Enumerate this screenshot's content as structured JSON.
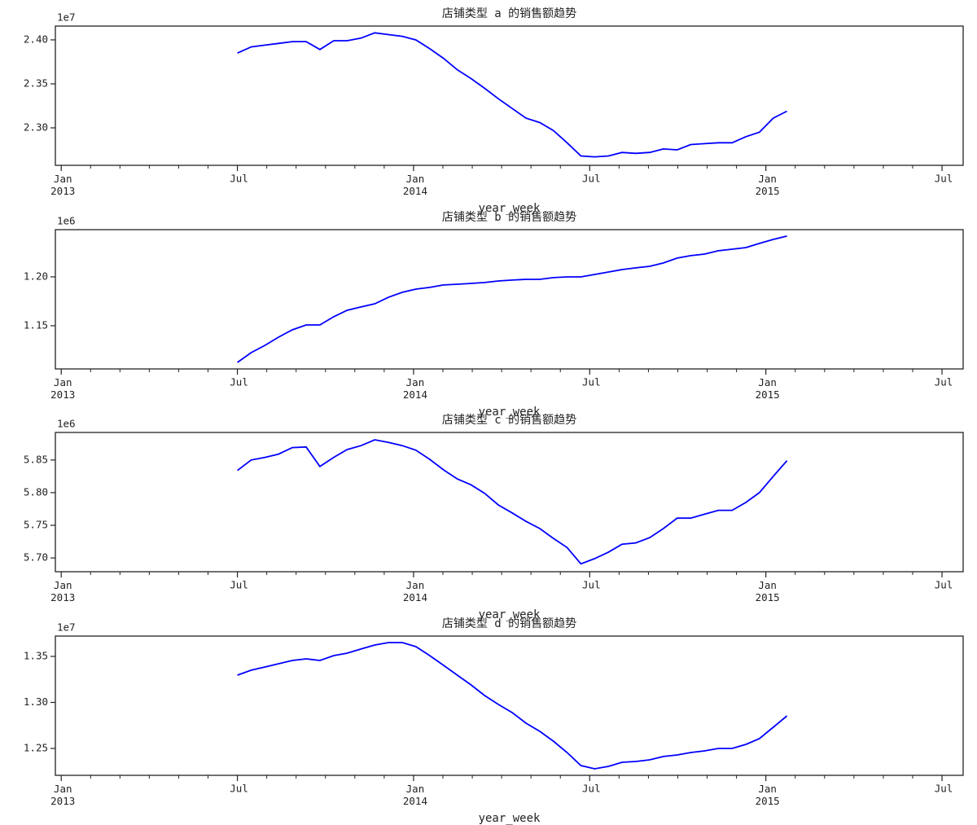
{
  "chart_data": [
    {
      "type": "line",
      "title": "店铺类型 a 的销售额趋势",
      "xlabel": "year_week",
      "offset_label": "1e7",
      "color": "#0000ff",
      "x": [
        6.0,
        6.47,
        6.94,
        7.4,
        7.87,
        8.34,
        8.81,
        9.28,
        9.74,
        10.21,
        10.68,
        11.15,
        11.62,
        12.08,
        12.55,
        13.02,
        13.49,
        13.96,
        14.42,
        14.89,
        15.36,
        15.83,
        16.3,
        16.76,
        17.23,
        17.7,
        18.17,
        18.64,
        19.1,
        19.57,
        20.04,
        20.51,
        20.98,
        21.44,
        21.91,
        22.38,
        22.85,
        23.32,
        23.78,
        24.25,
        24.72
      ],
      "values": [
        2.385,
        2.392,
        2.394,
        2.396,
        2.398,
        2.398,
        2.389,
        2.399,
        2.399,
        2.402,
        2.408,
        2.406,
        2.404,
        2.4,
        2.39,
        2.379,
        2.366,
        2.356,
        2.345,
        2.333,
        2.322,
        2.311,
        2.306,
        2.297,
        2.283,
        2.268,
        2.267,
        2.268,
        2.272,
        2.271,
        2.272,
        2.276,
        2.275,
        2.281,
        2.282,
        2.283,
        2.283,
        2.29,
        2.295,
        2.311,
        2.319
      ],
      "xlim": [
        -0.2,
        30.72
      ],
      "ylim": [
        2.2574,
        2.4157
      ],
      "xticks": [
        {
          "value": 0,
          "label": "Jan\n2013"
        },
        {
          "value": 6,
          "label": "Jul"
        },
        {
          "value": 12,
          "label": "Jan\n2014"
        },
        {
          "value": 18,
          "label": "Jul"
        },
        {
          "value": 24,
          "label": "Jan\n2015"
        },
        {
          "value": 30,
          "label": "Jul"
        }
      ],
      "xminorticks": [
        1,
        2,
        3,
        4,
        5,
        7,
        8,
        9,
        10,
        11,
        13,
        14,
        15,
        16,
        17,
        19,
        20,
        21,
        22,
        23,
        25,
        26,
        27,
        28,
        29
      ],
      "yticks": [
        {
          "value": 2.4,
          "label": "2.40"
        },
        2.35,
        {
          "value": 2.3,
          "label": "2.30"
        }
      ]
    },
    {
      "type": "line",
      "title": "店铺类型 b 的销售额趋势",
      "xlabel": "year_week",
      "offset_label": "1e6",
      "color": "#0000ff",
      "x": [
        6.0,
        6.47,
        6.94,
        7.4,
        7.87,
        8.34,
        8.81,
        9.28,
        9.74,
        10.21,
        10.68,
        11.15,
        11.62,
        12.08,
        12.55,
        13.02,
        13.49,
        13.96,
        14.42,
        14.89,
        15.36,
        15.83,
        16.3,
        16.76,
        17.23,
        17.7,
        18.17,
        18.64,
        19.1,
        19.57,
        20.04,
        20.51,
        20.98,
        21.44,
        21.91,
        22.38,
        22.85,
        23.32,
        23.78,
        24.25,
        24.72
      ],
      "values": [
        1.1125,
        1.1225,
        1.13,
        1.1383,
        1.1458,
        1.1508,
        1.1508,
        1.1592,
        1.1658,
        1.1692,
        1.1725,
        1.1792,
        1.1842,
        1.1875,
        1.1892,
        1.1917,
        1.1925,
        1.1933,
        1.1942,
        1.1958,
        1.1967,
        1.1975,
        1.1975,
        1.1992,
        1.2,
        1.2,
        1.2025,
        1.205,
        1.2075,
        1.2092,
        1.2108,
        1.2142,
        1.2192,
        1.2217,
        1.2233,
        1.2267,
        1.2283,
        1.23,
        1.2342,
        1.2383,
        1.2417
      ],
      "xlim": [
        -0.2,
        30.72
      ],
      "ylim": [
        1.1058,
        1.2483
      ],
      "xticks": [
        {
          "value": 0,
          "label": "Jan\n2013"
        },
        {
          "value": 6,
          "label": "Jul"
        },
        {
          "value": 12,
          "label": "Jan\n2014"
        },
        {
          "value": 18,
          "label": "Jul"
        },
        {
          "value": 24,
          "label": "Jan\n2015"
        },
        {
          "value": 30,
          "label": "Jul"
        }
      ],
      "xminorticks": [
        1,
        2,
        3,
        4,
        5,
        7,
        8,
        9,
        10,
        11,
        13,
        14,
        15,
        16,
        17,
        19,
        20,
        21,
        22,
        23,
        25,
        26,
        27,
        28,
        29
      ],
      "yticks": [
        {
          "value": 1.2,
          "label": "1.20"
        },
        1.15
      ]
    },
    {
      "type": "line",
      "title": "店铺类型 c 的销售额趋势",
      "xlabel": "year_week",
      "offset_label": "1e6",
      "color": "#0000ff",
      "x": [
        6.0,
        6.47,
        6.94,
        7.4,
        7.87,
        8.34,
        8.81,
        9.28,
        9.74,
        10.21,
        10.68,
        11.15,
        11.62,
        12.08,
        12.55,
        13.02,
        13.49,
        13.96,
        14.42,
        14.89,
        15.36,
        15.83,
        16.3,
        16.76,
        17.23,
        17.7,
        18.17,
        18.64,
        19.1,
        19.57,
        20.04,
        20.51,
        20.98,
        21.44,
        21.91,
        22.38,
        22.85,
        23.32,
        23.78,
        24.25,
        24.72
      ],
      "values": [
        5.834,
        5.85,
        5.854,
        5.859,
        5.869,
        5.87,
        5.84,
        5.854,
        5.866,
        5.872,
        5.881,
        5.877,
        5.872,
        5.865,
        5.851,
        5.835,
        5.821,
        5.812,
        5.799,
        5.781,
        5.769,
        5.756,
        5.745,
        5.73,
        5.716,
        5.691,
        5.699,
        5.709,
        5.721,
        5.723,
        5.731,
        5.745,
        5.761,
        5.761,
        5.767,
        5.773,
        5.773,
        5.785,
        5.8,
        5.825,
        5.849
      ],
      "xlim": [
        -0.2,
        30.72
      ],
      "ylim": [
        5.6789,
        5.8922
      ],
      "xticks": [
        {
          "value": 0,
          "label": "Jan\n2013"
        },
        {
          "value": 6,
          "label": "Jul"
        },
        {
          "value": 12,
          "label": "Jan\n2014"
        },
        {
          "value": 18,
          "label": "Jul"
        },
        {
          "value": 24,
          "label": "Jan\n2015"
        },
        {
          "value": 30,
          "label": "Jul"
        }
      ],
      "xminorticks": [
        1,
        2,
        3,
        4,
        5,
        7,
        8,
        9,
        10,
        11,
        13,
        14,
        15,
        16,
        17,
        19,
        20,
        21,
        22,
        23,
        25,
        26,
        27,
        28,
        29
      ],
      "yticks": [
        5.85,
        {
          "value": 5.8,
          "label": "5.80"
        },
        5.75,
        {
          "value": 5.7,
          "label": "5.70"
        }
      ]
    },
    {
      "type": "line",
      "title": "店铺类型 d 的销售额趋势",
      "xlabel": "year_week",
      "offset_label": "1e7",
      "color": "#0000ff",
      "x": [
        6.0,
        6.47,
        6.94,
        7.4,
        7.87,
        8.34,
        8.81,
        9.28,
        9.74,
        10.21,
        10.68,
        11.15,
        11.62,
        12.08,
        12.55,
        13.02,
        13.49,
        13.96,
        14.42,
        14.89,
        15.36,
        15.83,
        16.3,
        16.76,
        17.23,
        17.7,
        18.17,
        18.64,
        19.1,
        19.57,
        20.04,
        20.51,
        20.98,
        21.44,
        21.91,
        22.38,
        22.85,
        23.32,
        23.78,
        24.25,
        24.72
      ],
      "values": [
        1.3296,
        1.335,
        1.3385,
        1.342,
        1.3456,
        1.3473,
        1.3456,
        1.3509,
        1.3535,
        1.358,
        1.3624,
        1.365,
        1.365,
        1.3606,
        1.3509,
        1.3403,
        1.3296,
        1.319,
        1.3075,
        1.2978,
        1.2889,
        1.2774,
        1.2686,
        1.258,
        1.2456,
        1.2314,
        1.2279,
        1.2305,
        1.235,
        1.2358,
        1.2376,
        1.2412,
        1.2429,
        1.2456,
        1.2473,
        1.25,
        1.25,
        1.2544,
        1.2606,
        1.273,
        1.2854
      ],
      "xlim": [
        -0.2,
        30.72
      ],
      "ylim": [
        1.2208,
        1.3721
      ],
      "xticks": [
        {
          "value": 0,
          "label": "Jan\n2013"
        },
        {
          "value": 6,
          "label": "Jul"
        },
        {
          "value": 12,
          "label": "Jan\n2014"
        },
        {
          "value": 18,
          "label": "Jul"
        },
        {
          "value": 24,
          "label": "Jan\n2015"
        },
        {
          "value": 30,
          "label": "Jul"
        }
      ],
      "xminorticks": [
        1,
        2,
        3,
        4,
        5,
        7,
        8,
        9,
        10,
        11,
        13,
        14,
        15,
        16,
        17,
        19,
        20,
        21,
        22,
        23,
        25,
        26,
        27,
        28,
        29
      ],
      "yticks": [
        1.35,
        {
          "value": 1.3,
          "label": "1.30"
        },
        1.25
      ]
    }
  ]
}
